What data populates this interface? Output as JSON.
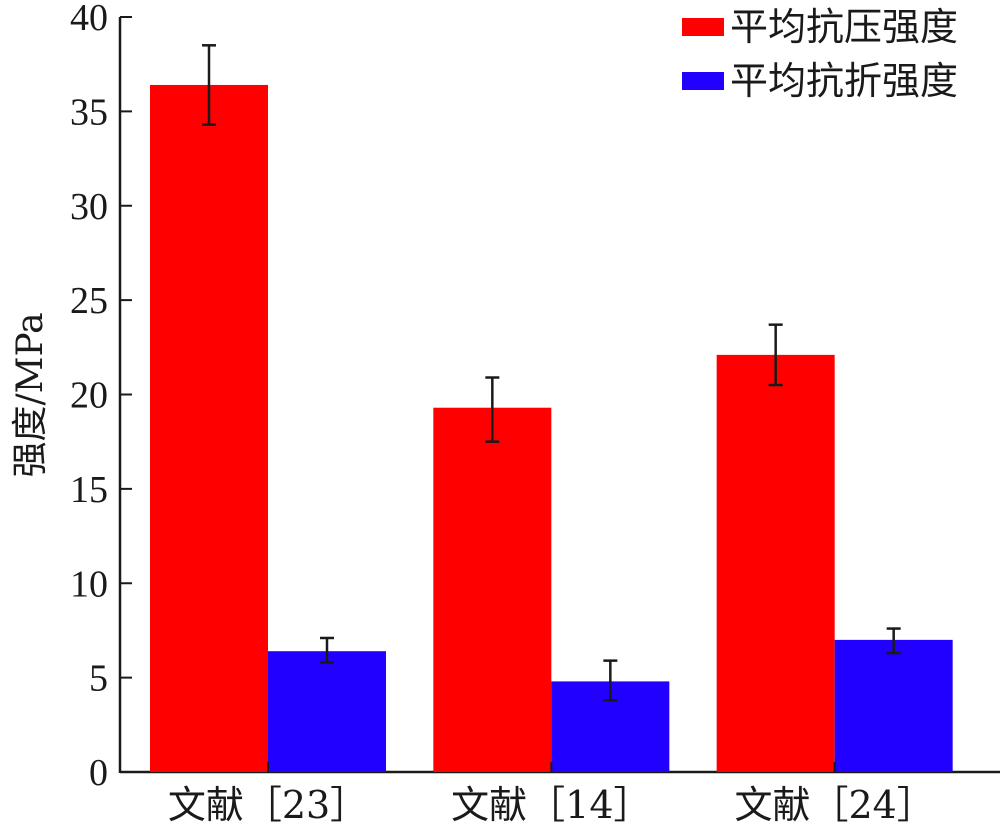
{
  "chart_data": {
    "type": "bar",
    "categories": [
      "文献［23］",
      "文献［14］",
      "文献［24］"
    ],
    "series": [
      {
        "name": "平均抗压强度",
        "color": "#ff0000",
        "values": [
          36.4,
          19.3,
          22.1
        ],
        "error": [
          [
            34.3,
            38.5
          ],
          [
            17.5,
            20.9
          ],
          [
            20.5,
            23.7
          ]
        ]
      },
      {
        "name": "平均抗折强度",
        "color": "#2200ff",
        "values": [
          6.4,
          4.8,
          7.0
        ],
        "error": [
          [
            5.8,
            7.1
          ],
          [
            3.8,
            5.9
          ],
          [
            6.3,
            7.6
          ]
        ]
      }
    ],
    "ylabel": "强度/MPa",
    "xlabel": "",
    "ylim": [
      0,
      40
    ],
    "yticks": [
      0,
      5,
      10,
      15,
      20,
      25,
      30,
      35,
      40
    ],
    "grid": false,
    "legend_position": "top-right"
  }
}
